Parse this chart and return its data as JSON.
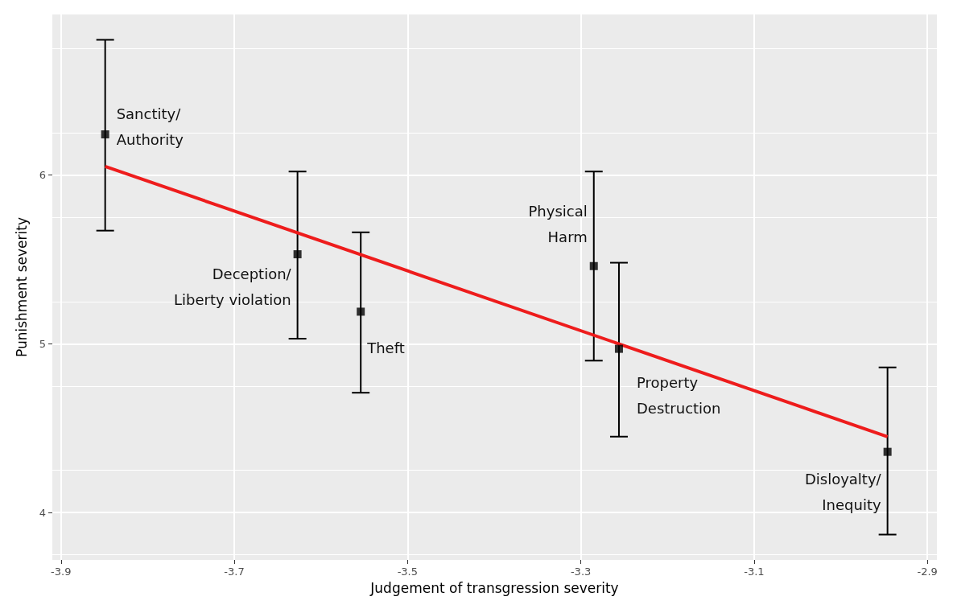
{
  "chart_data": {
    "type": "scatter",
    "xlabel": "Judgement of transgression severity",
    "ylabel": "Punishment severity",
    "xlim": [
      -3.91,
      -2.889
    ],
    "ylim": [
      3.72,
      6.95
    ],
    "xticks": [
      -3.9,
      -3.7,
      -3.5,
      -3.3,
      -3.1,
      -2.9
    ],
    "yticks": [
      4,
      5,
      6
    ],
    "grid": true,
    "series": [
      {
        "marker": "square",
        "color": "#000000",
        "x": [
          -3.849,
          -3.627,
          -3.554,
          -3.285,
          -3.256,
          -2.946
        ],
        "values": [
          6.24,
          5.53,
          5.19,
          5.46,
          4.97,
          4.36
        ],
        "errors": [
          [
            5.67,
            6.8
          ],
          [
            5.03,
            6.02
          ],
          [
            4.71,
            5.66
          ],
          [
            4.9,
            6.02
          ],
          [
            4.45,
            5.48
          ],
          [
            3.87,
            4.86
          ]
        ]
      },
      {
        "type": "line",
        "marker": "none",
        "color": "#ee1c1c",
        "x": [
          -3.849,
          -2.946
        ],
        "values": [
          6.05,
          4.45
        ]
      }
    ],
    "annotations": [
      {
        "text": "Sanctity/\nAuthority",
        "x": -3.849,
        "y": 6.24
      },
      {
        "text": "Deception/\nLiberty violation",
        "x": -3.627,
        "y": 5.53
      },
      {
        "text": "Theft",
        "x": -3.554,
        "y": 5.19
      },
      {
        "text": "Physical\nHarm",
        "x": -3.285,
        "y": 5.46
      },
      {
        "text": "Property\nDestruction",
        "x": -3.256,
        "y": 4.97
      },
      {
        "text": "Disloyalty/\nInequity",
        "x": -2.946,
        "y": 4.36
      }
    ]
  }
}
